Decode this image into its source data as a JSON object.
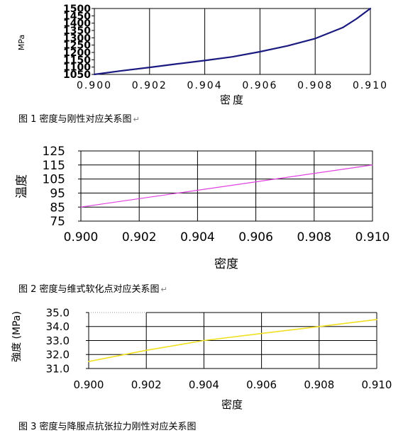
{
  "charts": [
    {
      "chart_data": {
        "type": "line",
        "xlabel": "密度",
        "ylabel": "MPa",
        "xlim": [
          0.9,
          0.91
        ],
        "ylim": [
          1050,
          1500
        ],
        "x_ticks": [
          0.9,
          0.902,
          0.904,
          0.906,
          0.908,
          0.91
        ],
        "x_tick_labels": [
          "0.900",
          "0.902",
          "0.904",
          "0.906",
          "0.908",
          "0.910"
        ],
        "y_ticks": [
          1050,
          1100,
          1150,
          1200,
          1250,
          1300,
          1350,
          1400,
          1450,
          1500
        ],
        "y_tick_labels": [
          "1050",
          "1100",
          "1150",
          "1200",
          "1250",
          "1300",
          "1350",
          "1400",
          "1450",
          "1500"
        ],
        "grid": "vertical",
        "series": [
          {
            "color": "#1a1a80",
            "x": [
              0.9,
              0.901,
              0.902,
              0.903,
              0.904,
              0.905,
              0.906,
              0.907,
              0.908,
              0.909,
              0.9095,
              0.91
            ],
            "y": [
              1050,
              1075,
              1098,
              1122,
              1145,
              1170,
              1205,
              1245,
              1295,
              1370,
              1430,
              1500
            ]
          }
        ]
      },
      "caption": "图 1 密度与刚性对应关系图",
      "caption_mark": "↵"
    },
    {
      "chart_data": {
        "type": "line",
        "xlabel": "密度",
        "ylabel": "温度",
        "xlim": [
          0.9,
          0.91
        ],
        "ylim": [
          75,
          125
        ],
        "x_ticks": [
          0.9,
          0.902,
          0.904,
          0.906,
          0.908,
          0.91
        ],
        "x_tick_labels": [
          "0.900",
          "0.902",
          "0.904",
          "0.906",
          "0.908",
          "0.910"
        ],
        "y_ticks": [
          75,
          85,
          95,
          105,
          115,
          125
        ],
        "y_tick_labels": [
          "75",
          "85",
          "95",
          "105",
          "115",
          "125"
        ],
        "grid": "both",
        "series": [
          {
            "color": "#e040e0",
            "x": [
              0.9,
              0.91
            ],
            "y": [
              85,
              115
            ]
          }
        ]
      },
      "caption": "图 2 密度与维式软化点对应关系图",
      "caption_mark": "↵"
    },
    {
      "chart_data": {
        "type": "line",
        "xlabel": "密度",
        "ylabel": "強度 (MPa)",
        "xlim": [
          0.9,
          0.91
        ],
        "ylim": [
          31.0,
          35.0
        ],
        "x_ticks": [
          0.9,
          0.902,
          0.904,
          0.906,
          0.908,
          0.91
        ],
        "x_tick_labels": [
          "0.900",
          "0.902",
          "0.904",
          "0.906",
          "0.908",
          "0.910"
        ],
        "y_ticks": [
          31.0,
          32.0,
          33.0,
          34.0,
          35.0
        ],
        "y_tick_labels": [
          "31.0",
          "32.0",
          "33.0",
          "34.0",
          "35.0"
        ],
        "grid": "both",
        "series": [
          {
            "color": "#f0e020",
            "x": [
              0.9,
              0.902,
              0.904,
              0.906,
              0.908,
              0.91
            ],
            "y": [
              31.5,
              32.3,
              33.0,
              33.5,
              34.0,
              34.5
            ]
          }
        ]
      },
      "caption": "图 3 密度与降服点抗张拉力刚性对应关系图",
      "caption_mark": ""
    }
  ]
}
